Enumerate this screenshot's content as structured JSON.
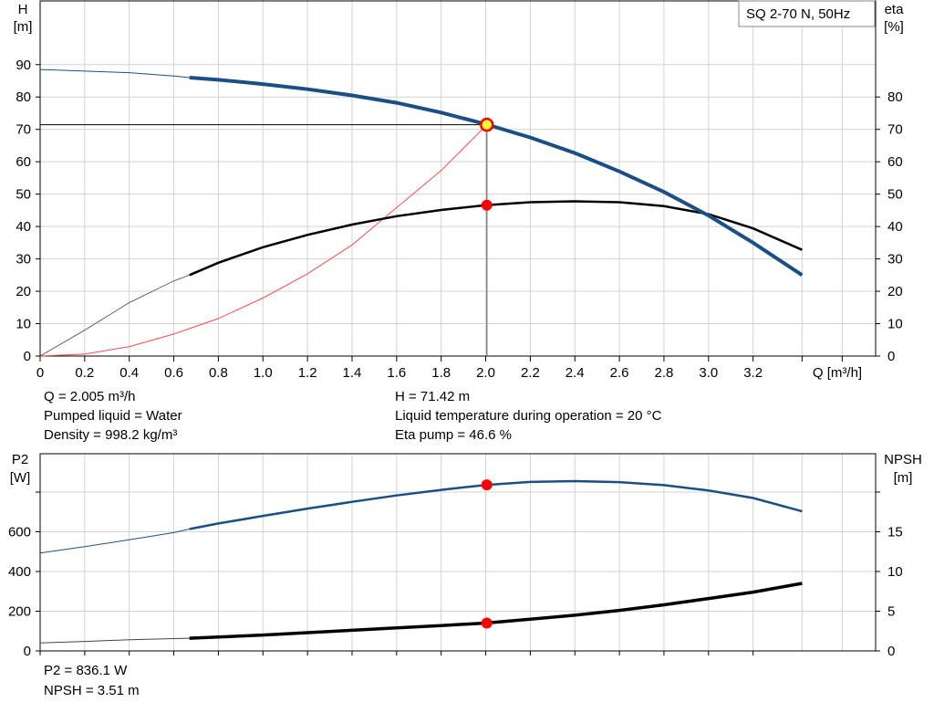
{
  "top_info": {
    "q": "Q = 2.005 m³/h",
    "liquid": "Pumped liquid = Water",
    "density": "Density = 998.2 kg/m³",
    "h": "H = 71.42 m",
    "temp": "Liquid temperature during operation = 20 °C",
    "eta": "Eta pump = 46.6 %"
  },
  "bottom_info": {
    "p2": "P2 = 836.1 W",
    "npsh": "NPSH = 3.51 m"
  },
  "chart_data": [
    {
      "type": "line",
      "title": "SQ 2-70 N, 50Hz",
      "xlabel": "Q [m³/h]",
      "ylabel_left": [
        "H",
        "[m]"
      ],
      "ylabel_right": [
        "eta",
        "[%]"
      ],
      "xlim": [
        0,
        3.75
      ],
      "ylim_left": [
        0,
        100
      ],
      "ylim_right": [
        0,
        100
      ],
      "x_ticks": [
        0,
        0.2,
        0.4,
        0.6,
        0.8,
        1.0,
        1.2,
        1.4,
        1.6,
        1.8,
        2.0,
        2.2,
        2.4,
        2.6,
        2.8,
        3.0,
        3.2
      ],
      "x_tick_labels": [
        "0",
        "0.2",
        "0.4",
        "0.6",
        "0.8",
        "1.0",
        "1.2",
        "1.4",
        "1.6",
        "1.8",
        "2.0",
        "2.2",
        "2.4",
        "2.6",
        "2.8",
        "3.0",
        "3.2"
      ],
      "y_ticks_left": [
        0,
        10,
        20,
        30,
        40,
        50,
        60,
        70,
        80,
        90
      ],
      "y_ticks_right": [
        0,
        10,
        20,
        30,
        40,
        50,
        60,
        70,
        80
      ],
      "grid": true,
      "colors": {
        "H": "#1a4f86",
        "eta": "#000000",
        "system": "#ff4a4a",
        "marker": "#ff0000",
        "duty_marker_fill": "#ffff33"
      },
      "series": [
        {
          "key": "H",
          "x": [
            0,
            0.2,
            0.4,
            0.6,
            0.67,
            0.8,
            1.0,
            1.2,
            1.4,
            1.6,
            1.8,
            2.0,
            2.2,
            2.4,
            2.6,
            2.8,
            3.0,
            3.2,
            3.42
          ],
          "values": [
            88.5,
            88.0,
            87.5,
            86.5,
            86.0,
            85.3,
            84.0,
            82.4,
            80.5,
            78.2,
            75.2,
            71.6,
            67.5,
            62.7,
            57.0,
            50.7,
            43.4,
            35.0,
            25.0
          ],
          "bold_from": 0.67
        },
        {
          "key": "eta",
          "x": [
            0,
            0.2,
            0.4,
            0.6,
            0.67,
            0.8,
            1.0,
            1.2,
            1.4,
            1.6,
            1.8,
            2.0,
            2.2,
            2.4,
            2.6,
            2.8,
            3.0,
            3.2,
            3.42
          ],
          "values": [
            0,
            8.0,
            16.5,
            23.2,
            25.0,
            28.8,
            33.6,
            37.4,
            40.6,
            43.2,
            45.1,
            46.6,
            47.5,
            47.8,
            47.5,
            46.3,
            43.8,
            39.4,
            32.8
          ],
          "bold_from": 0.67
        },
        {
          "key": "system",
          "x": [
            0,
            0.2,
            0.4,
            0.6,
            0.8,
            1.0,
            1.2,
            1.4,
            1.6,
            1.8,
            2.005
          ],
          "values": [
            0,
            0.6,
            2.9,
            6.8,
            11.6,
            17.9,
            25.4,
            34.3,
            45.8,
            57.3,
            71.42
          ]
        }
      ],
      "duty_point": {
        "x": 2.005,
        "H": 71.42,
        "eta": 46.6
      }
    },
    {
      "type": "line",
      "ylabel_left": [
        "P2",
        "[W]"
      ],
      "ylabel_right": [
        "NPSH",
        "[m]"
      ],
      "xlim": [
        0,
        3.75
      ],
      "ylim_left": [
        0,
        800
      ],
      "ylim_right": [
        0,
        20
      ],
      "x_ticks": [
        0,
        0.2,
        0.4,
        0.6,
        0.8,
        1.0,
        1.2,
        1.4,
        1.6,
        1.8,
        2.0,
        2.2,
        2.4,
        2.6,
        2.8,
        3.0,
        3.2
      ],
      "y_ticks_left": [
        0,
        200,
        400,
        600
      ],
      "y_tick_labels_left": [
        "0",
        "200",
        "400",
        "600"
      ],
      "y_ticks_right": [
        0,
        5,
        10,
        15
      ],
      "y_tick_labels_right": [
        "0",
        "5",
        "10",
        "15"
      ],
      "grid": true,
      "colors": {
        "P2": "#1a4f86",
        "NPSH": "#000000",
        "marker": "#ff0000"
      },
      "series": [
        {
          "key": "P2",
          "x": [
            0,
            0.2,
            0.4,
            0.6,
            0.67,
            0.8,
            1.0,
            1.2,
            1.4,
            1.6,
            1.8,
            2.0,
            2.2,
            2.4,
            2.6,
            2.8,
            3.0,
            3.2,
            3.42
          ],
          "values": [
            493,
            525,
            560,
            596,
            614,
            642,
            680,
            717,
            751,
            783,
            811,
            836,
            851,
            855,
            850,
            835,
            808,
            770,
            703
          ],
          "bold_from": 0.67
        },
        {
          "key": "NPSH",
          "x": [
            0,
            0.2,
            0.4,
            0.6,
            0.67,
            0.8,
            1.0,
            1.2,
            1.4,
            1.6,
            1.8,
            2.0,
            2.2,
            2.4,
            2.6,
            2.8,
            3.0,
            3.2,
            3.42
          ],
          "values": [
            1.0,
            1.2,
            1.4,
            1.55,
            1.6,
            1.75,
            2.0,
            2.3,
            2.6,
            2.9,
            3.2,
            3.51,
            4.0,
            4.5,
            5.1,
            5.8,
            6.6,
            7.4,
            8.5
          ],
          "bold_from": 0.67
        }
      ],
      "duty_point": {
        "x": 2.005,
        "P2": 836.1,
        "NPSH": 3.51
      }
    }
  ]
}
